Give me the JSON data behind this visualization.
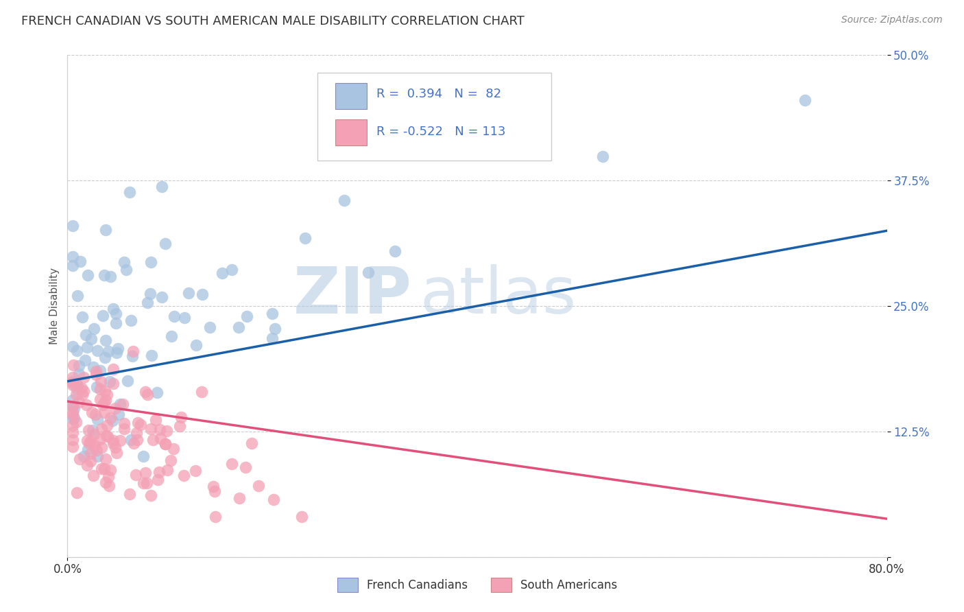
{
  "title": "FRENCH CANADIAN VS SOUTH AMERICAN MALE DISABILITY CORRELATION CHART",
  "source_text": "Source: ZipAtlas.com",
  "ylabel": "Male Disability",
  "x_min": 0.0,
  "x_max": 0.8,
  "y_min": 0.0,
  "y_max": 0.5,
  "y_ticks": [
    0.0,
    0.125,
    0.25,
    0.375,
    0.5
  ],
  "y_tick_labels": [
    "",
    "12.5%",
    "25.0%",
    "37.5%",
    "50.0%"
  ],
  "blue_R": 0.394,
  "blue_N": 82,
  "pink_R": -0.522,
  "pink_N": 113,
  "blue_color": "#a8c4e0",
  "blue_line_color": "#1a5fa8",
  "pink_color": "#f4a0b5",
  "pink_line_color": "#e0507a",
  "legend_blue_label": "French Canadians",
  "legend_pink_label": "South Americans",
  "watermark_zip": "ZIP",
  "watermark_atlas": "atlas",
  "title_color": "#333333",
  "title_fontsize": 13,
  "grid_color": "#cccccc",
  "background_color": "#ffffff",
  "tick_color": "#4472c4",
  "blue_line_start_y": 0.175,
  "blue_line_end_y": 0.325,
  "pink_line_start_y": 0.155,
  "pink_line_end_y": 0.038
}
